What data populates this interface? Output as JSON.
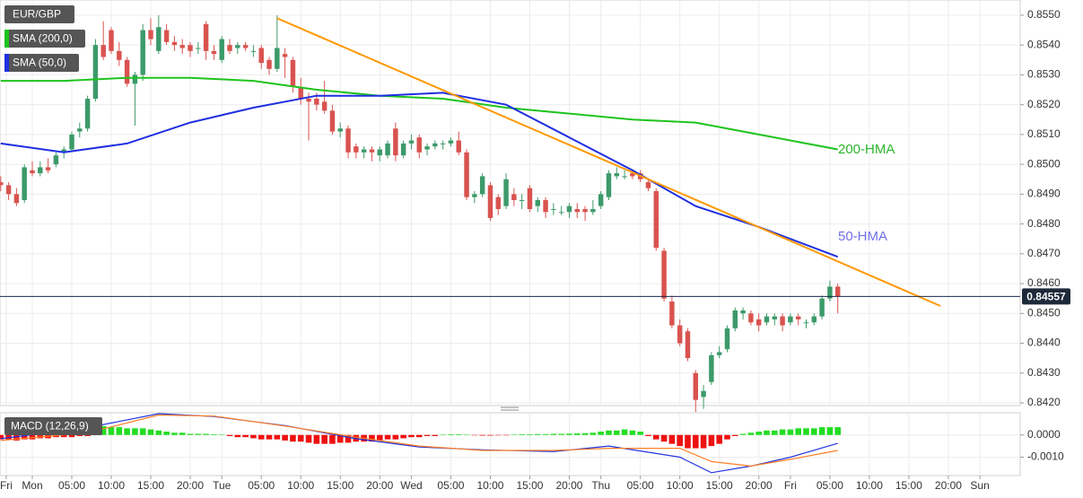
{
  "chart_data": [
    {
      "type": "candlestick",
      "title": "EUR/GBP",
      "x": [
        -4,
        -3,
        -2,
        -1,
        0,
        1,
        2,
        3,
        4,
        5,
        6,
        7,
        8,
        9,
        10,
        11,
        12,
        13,
        14,
        15,
        16,
        17,
        18,
        19,
        20,
        21,
        22,
        23,
        24,
        25,
        26,
        27,
        28,
        29,
        30,
        31,
        32,
        33,
        34,
        35,
        36,
        37,
        38,
        39,
        40,
        41,
        42,
        43,
        44,
        45,
        46,
        47,
        48,
        49,
        50,
        51,
        52,
        53,
        54,
        55,
        56,
        57,
        58,
        59,
        60,
        61,
        62,
        63,
        64,
        65,
        66,
        67,
        68,
        69,
        70,
        71,
        72,
        73,
        74,
        75,
        76,
        77,
        78,
        79,
        80,
        81,
        82,
        83,
        84,
        85,
        86,
        87,
        88,
        89,
        90,
        91,
        92,
        93,
        94,
        95,
        96,
        97,
        98,
        99,
        100,
        101,
        102
      ],
      "open": [
        0.8494,
        0.8493,
        0.849,
        0.8488,
        0.8498,
        0.8497,
        0.8499,
        0.85,
        0.8504,
        0.8505,
        0.8511,
        0.8512,
        0.8522,
        0.854,
        0.8545,
        0.8538,
        0.8535,
        0.8527,
        0.853,
        0.8545,
        0.8538,
        0.8545,
        0.8541,
        0.854,
        0.854,
        0.8539,
        0.8547,
        0.8538,
        0.8535,
        0.854,
        0.8539,
        0.854,
        0.8538,
        0.8539,
        0.8535,
        0.8532,
        0.8537,
        0.8535,
        0.8526,
        0.8522,
        0.8522,
        0.8521,
        0.8518,
        0.8511,
        0.8512,
        0.8506,
        0.8504,
        0.8505,
        0.8503,
        0.8503,
        0.8512,
        0.8503,
        0.8507,
        0.8509,
        0.8505,
        0.8506,
        0.8507,
        0.8507,
        0.8508,
        0.8504,
        0.8489,
        0.849,
        0.8493,
        0.8489,
        0.8486,
        0.849,
        0.8488,
        0.8492,
        0.8486,
        0.8488,
        0.8485,
        0.8484,
        0.8484,
        0.8485,
        0.8485,
        0.8484,
        0.8486,
        0.8489,
        0.8496,
        0.8496,
        0.8497,
        0.8497,
        0.8494,
        0.8491,
        0.8471,
        0.8454,
        0.8446,
        0.8444,
        0.843,
        0.8422,
        0.8427,
        0.8436,
        0.8438,
        0.8445,
        0.845,
        0.845,
        0.8448,
        0.8447,
        0.8448,
        0.8449,
        0.8447,
        0.8449,
        0.8447,
        0.8447,
        0.8449,
        0.8455,
        0.8459
      ],
      "high": [
        0.8496,
        0.8494,
        0.8492,
        0.85,
        0.8501,
        0.8501,
        0.8502,
        0.8504,
        0.8506,
        0.8511,
        0.8514,
        0.8523,
        0.8542,
        0.8548,
        0.8546,
        0.8541,
        0.8536,
        0.8531,
        0.8547,
        0.8549,
        0.855,
        0.8547,
        0.8543,
        0.8542,
        0.8541,
        0.8541,
        0.8548,
        0.854,
        0.8543,
        0.8542,
        0.8541,
        0.8541,
        0.854,
        0.854,
        0.8536,
        0.855,
        0.8539,
        0.8536,
        0.8529,
        0.8524,
        0.8524,
        0.8528,
        0.852,
        0.8514,
        0.8513,
        0.8507,
        0.8506,
        0.8506,
        0.8506,
        0.8508,
        0.8514,
        0.8508,
        0.851,
        0.851,
        0.8507,
        0.8508,
        0.8508,
        0.8509,
        0.8511,
        0.8505,
        0.8491,
        0.8497,
        0.8494,
        0.849,
        0.8497,
        0.8492,
        0.849,
        0.8493,
        0.8489,
        0.8489,
        0.8487,
        0.8486,
        0.8487,
        0.8487,
        0.8486,
        0.8488,
        0.8491,
        0.8498,
        0.8499,
        0.8498,
        0.8498,
        0.8498,
        0.8495,
        0.8492,
        0.8472,
        0.8456,
        0.8448,
        0.8445,
        0.8431,
        0.8426,
        0.8437,
        0.8439,
        0.8446,
        0.8452,
        0.8452,
        0.8451,
        0.845,
        0.845,
        0.845,
        0.845,
        0.845,
        0.845,
        0.8448,
        0.845,
        0.8456,
        0.8461,
        0.846
      ],
      "low": [
        0.8491,
        0.8488,
        0.8486,
        0.8487,
        0.8496,
        0.8496,
        0.8497,
        0.8499,
        0.8502,
        0.8504,
        0.8509,
        0.8511,
        0.8521,
        0.8535,
        0.8537,
        0.8533,
        0.8526,
        0.8513,
        0.8528,
        0.854,
        0.8537,
        0.854,
        0.8538,
        0.8537,
        0.8536,
        0.8537,
        0.8535,
        0.8535,
        0.8534,
        0.8537,
        0.8537,
        0.8538,
        0.8536,
        0.8532,
        0.853,
        0.8531,
        0.8529,
        0.8524,
        0.852,
        0.8508,
        0.8518,
        0.8517,
        0.851,
        0.8509,
        0.8502,
        0.8502,
        0.8502,
        0.8501,
        0.8501,
        0.8502,
        0.8501,
        0.8502,
        0.8505,
        0.8502,
        0.8503,
        0.8505,
        0.8505,
        0.8506,
        0.8503,
        0.8488,
        0.8487,
        0.8489,
        0.8481,
        0.8483,
        0.8485,
        0.8486,
        0.8485,
        0.8484,
        0.8484,
        0.8482,
        0.8483,
        0.8483,
        0.8482,
        0.8482,
        0.8481,
        0.8483,
        0.8485,
        0.8488,
        0.8495,
        0.8495,
        0.8495,
        0.8494,
        0.8491,
        0.8471,
        0.8454,
        0.8445,
        0.8439,
        0.8434,
        0.8417,
        0.8418,
        0.8426,
        0.8435,
        0.8437,
        0.8444,
        0.8448,
        0.8446,
        0.8444,
        0.8446,
        0.8446,
        0.8444,
        0.8446,
        0.8446,
        0.8445,
        0.8446,
        0.8448,
        0.8454,
        0.845
      ],
      "close": [
        0.8493,
        0.849,
        0.8487,
        0.8499,
        0.8497,
        0.8499,
        0.8498,
        0.8503,
        0.8505,
        0.851,
        0.8512,
        0.8522,
        0.854,
        0.8536,
        0.8538,
        0.8535,
        0.8527,
        0.853,
        0.8545,
        0.8542,
        0.8546,
        0.8541,
        0.854,
        0.8539,
        0.8538,
        0.8539,
        0.8538,
        0.8537,
        0.8542,
        0.8538,
        0.854,
        0.8539,
        0.8538,
        0.8534,
        0.8532,
        0.8539,
        0.8536,
        0.8526,
        0.8522,
        0.8521,
        0.852,
        0.8518,
        0.8511,
        0.8512,
        0.8504,
        0.8504,
        0.8505,
        0.8504,
        0.8505,
        0.8507,
        0.8503,
        0.8507,
        0.8508,
        0.8504,
        0.8506,
        0.8507,
        0.8507,
        0.8508,
        0.8504,
        0.8489,
        0.849,
        0.8496,
        0.8482,
        0.8485,
        0.8495,
        0.8488,
        0.8488,
        0.8485,
        0.8488,
        0.8484,
        0.8485,
        0.8484,
        0.8486,
        0.8484,
        0.8484,
        0.8485,
        0.849,
        0.8497,
        0.8497,
        0.8496,
        0.8496,
        0.8495,
        0.8492,
        0.8472,
        0.8455,
        0.8446,
        0.844,
        0.8435,
        0.8421,
        0.8424,
        0.8436,
        0.8437,
        0.8445,
        0.8451,
        0.8451,
        0.8447,
        0.8446,
        0.8449,
        0.8449,
        0.8446,
        0.8449,
        0.8448,
        0.8447,
        0.8449,
        0.8455,
        0.8459,
        0.84557
      ],
      "up_color": "#3c9a6a",
      "down_color": "#d9534f",
      "series": [
        {
          "name": "SMA (200,0)",
          "color": "#1ec31e",
          "x": [
            -4,
            4,
            12,
            20,
            28,
            36,
            44,
            52,
            60,
            68,
            76,
            84,
            92,
            102
          ],
          "values": [
            0.8528,
            0.8528,
            0.8529,
            0.8529,
            0.8528,
            0.8525,
            0.8523,
            0.8522,
            0.8519,
            0.8517,
            0.8515,
            0.8514,
            0.851,
            0.8505
          ]
        },
        {
          "name": "SMA (50,0)",
          "color": "#1f2fe0",
          "x": [
            -4,
            4,
            12,
            20,
            28,
            36,
            44,
            52,
            60,
            68,
            76,
            84,
            92,
            102
          ],
          "values": [
            0.8507,
            0.8504,
            0.8507,
            0.8514,
            0.8519,
            0.8523,
            0.8523,
            0.8524,
            0.852,
            0.8509,
            0.8498,
            0.8486,
            0.8479,
            0.8469
          ]
        }
      ],
      "trendline": {
        "color": "#ff9900",
        "x": [
          31,
          115
        ],
        "values": [
          0.8549,
          0.84525
        ]
      },
      "annotations": [
        {
          "text": "200-HMA",
          "color": "#2bb52b"
        },
        {
          "text": "50-HMA",
          "color": "#7070e8"
        }
      ],
      "last_price": 0.84557,
      "xlim": [
        -4.09,
        125.1
      ],
      "ylim": [
        0.84191,
        0.85551
      ],
      "yticks": [
        {
          "value": 0.842,
          "label": "0.8420"
        },
        {
          "value": 0.843,
          "label": "0.8430"
        },
        {
          "value": 0.844,
          "label": "0.8440"
        },
        {
          "value": 0.845,
          "label": "0.8450"
        },
        {
          "value": 0.846,
          "label": "0.8460"
        },
        {
          "value": 0.847,
          "label": "0.8470"
        },
        {
          "value": 0.848,
          "label": "0.8480"
        },
        {
          "value": 0.849,
          "label": "0.8490"
        },
        {
          "value": 0.85,
          "label": "0.8500"
        },
        {
          "value": 0.851,
          "label": "0.8510"
        },
        {
          "value": 0.852,
          "label": "0.8520"
        },
        {
          "value": 0.853,
          "label": "0.8530"
        },
        {
          "value": 0.854,
          "label": "0.8540"
        },
        {
          "value": 0.855,
          "label": "0.8550"
        }
      ],
      "grid": true
    },
    {
      "type": "macd",
      "title": "MACD (12,26,9)",
      "histogram": {
        "positive_color": "#22dd22",
        "negative_color": "#ee1111",
        "values": [
          -0.0002,
          -0.0002,
          -0.00025,
          -0.0002,
          -0.0002,
          -0.00015,
          -0.00015,
          -0.0001,
          -0.0001,
          -0.0001,
          -5e-05,
          -5e-05,
          0.0004,
          0.0004,
          0.00035,
          0.00035,
          0.0003,
          0.0003,
          0.0003,
          0.00025,
          0.0002,
          0.00015,
          0.0001,
          0.0001,
          5e-05,
          5e-05,
          5e-05,
          3e-05,
          2e-05,
          -5e-05,
          -0.0001,
          -0.0001,
          -0.00015,
          -0.0002,
          -0.0002,
          -0.0002,
          -0.00025,
          -0.0003,
          -0.0003,
          -0.00035,
          -0.0004,
          -0.0004,
          -0.0004,
          -0.00035,
          -0.00035,
          -0.0003,
          -0.0003,
          -0.0003,
          -0.00025,
          -0.0002,
          -0.0002,
          -0.00015,
          -0.0001,
          -0.0001,
          -5e-05,
          -5e-05,
          2e-05,
          3e-05,
          3e-05,
          2e-05,
          -2e-05,
          -3e-05,
          -3e-05,
          -2e-05,
          -2e-05,
          2e-05,
          3e-05,
          3e-05,
          4e-05,
          4e-05,
          5e-05,
          5e-05,
          6e-05,
          7e-05,
          8e-05,
          0.0001,
          0.00015,
          0.0002,
          0.0002,
          0.00025,
          0.0002,
          0.00015,
          -5e-05,
          -0.0002,
          -0.0003,
          -0.0004,
          -0.0005,
          -0.0006,
          -0.0006,
          -0.0006,
          -0.0005,
          -0.0004,
          -0.0002,
          -5e-05,
          5e-05,
          0.0001,
          0.00015,
          0.0002,
          0.0002,
          0.00025,
          0.00025,
          0.0003,
          0.0003,
          0.0003,
          0.00035,
          0.00035,
          0.00035
        ]
      },
      "series": [
        {
          "color": "#2233dd",
          "x": [
            -4,
            7,
            16,
            23,
            32,
            41,
            49,
            57,
            66,
            73,
            82,
            86,
            91,
            96,
            102
          ],
          "values": [
            -0.00017,
            0.00033,
            0.00096,
            0.00083,
            0.00042,
            -0.00017,
            -0.00054,
            -0.00067,
            -0.00075,
            -0.0005,
            -0.001,
            -0.0017,
            -0.0014,
            -0.001,
            -0.00038
          ]
        },
        {
          "color": "#ff7f27",
          "x": [
            -4,
            7,
            16,
            23,
            32,
            41,
            49,
            57,
            66,
            73,
            82,
            86,
            91,
            96,
            102
          ],
          "values": [
            -0.00025,
            0.0001,
            0.0009,
            0.00085,
            0.0004,
            -0.0001,
            -0.0005,
            -0.0007,
            -0.0007,
            -0.0006,
            -0.0006,
            -0.0012,
            -0.0014,
            -0.0011,
            -0.0007
          ]
        }
      ],
      "xlim": [
        -4.09,
        125.1
      ],
      "ylim": [
        -0.00183,
        0.001
      ],
      "yticks": [
        {
          "value": 0,
          "label": "0.0000"
        },
        {
          "value": -0.001,
          "label": "-0.0010"
        }
      ],
      "xticks": [
        {
          "value": -3.3,
          "label": "Fri"
        },
        {
          "value": 0,
          "label": "Mon"
        },
        {
          "value": 5,
          "label": "05:00"
        },
        {
          "value": 10,
          "label": "10:00"
        },
        {
          "value": 15,
          "label": "15:00"
        },
        {
          "value": 20,
          "label": "20:00"
        },
        {
          "value": 24,
          "label": "Tue"
        },
        {
          "value": 29,
          "label": "05:00"
        },
        {
          "value": 34,
          "label": "10:00"
        },
        {
          "value": 39,
          "label": "15:00"
        },
        {
          "value": 44,
          "label": "20:00"
        },
        {
          "value": 48,
          "label": "Wed"
        },
        {
          "value": 53,
          "label": "05:00"
        },
        {
          "value": 58,
          "label": "10:00"
        },
        {
          "value": 63,
          "label": "15:00"
        },
        {
          "value": 68,
          "label": "20:00"
        },
        {
          "value": 72,
          "label": "Thu"
        },
        {
          "value": 77,
          "label": "05:00"
        },
        {
          "value": 82,
          "label": "10:00"
        },
        {
          "value": 87,
          "label": "15:00"
        },
        {
          "value": 92,
          "label": "20:00"
        },
        {
          "value": 96,
          "label": "Fri"
        },
        {
          "value": 101,
          "label": "05:00"
        },
        {
          "value": 106,
          "label": "10:00"
        },
        {
          "value": 111,
          "label": "15:00"
        },
        {
          "value": 116,
          "label": "20:00"
        },
        {
          "value": 120,
          "label": "Sun"
        }
      ]
    }
  ]
}
